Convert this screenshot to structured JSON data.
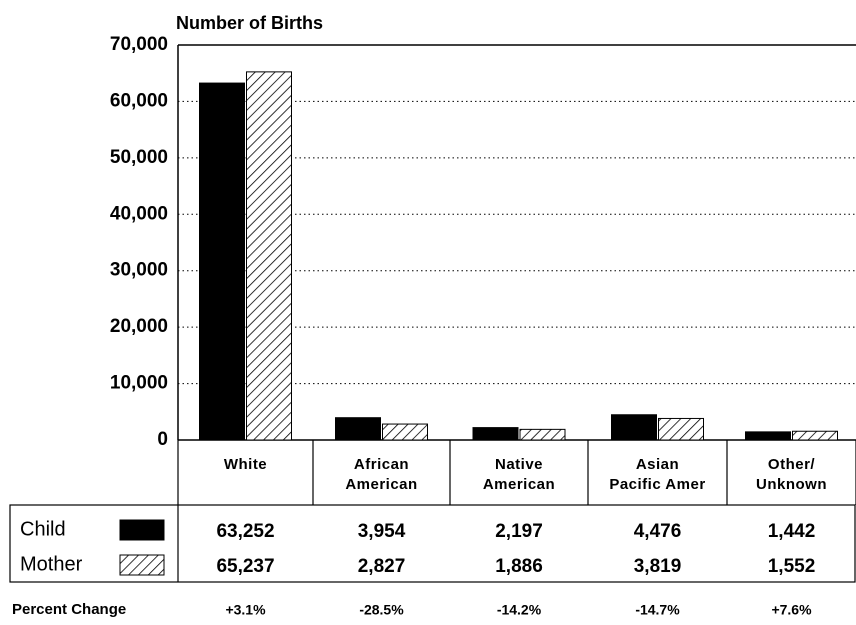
{
  "chart_data": {
    "type": "bar",
    "title": "Number of Births",
    "categories": [
      "White",
      "African\nAmerican",
      "Native\nAmerican",
      "Asian\nPacific Amer",
      "Other/\nUnknown"
    ],
    "series": [
      {
        "name": "Child",
        "color": "#000000",
        "values": [
          63252,
          3954,
          2197,
          4476,
          1442
        ],
        "value_labels": [
          "63,252",
          "3,954",
          "2,197",
          "4,476",
          "1,442"
        ]
      },
      {
        "name": "Mother",
        "color": "hatched",
        "values": [
          65237,
          2827,
          1886,
          3819,
          1552
        ],
        "value_labels": [
          "65,237",
          "2,827",
          "1,886",
          "3,819",
          "1,552"
        ]
      }
    ],
    "ylim": [
      0,
      70000
    ],
    "yticks": [
      0,
      {
        "value": 10000,
        "label": "10,000"
      },
      {
        "value": 20000,
        "label": "20,000"
      },
      {
        "value": 30000,
        "label": "30,000"
      },
      {
        "value": 40000,
        "label": "40,000"
      },
      {
        "value": 50000,
        "label": "50,000"
      },
      {
        "value": 60000,
        "label": "60,000"
      },
      {
        "value": 70000,
        "label": "70,000"
      }
    ],
    "grid": true,
    "percent_change": {
      "label": "Percent Change",
      "values": [
        "+3.1%",
        "-28.5%",
        "-14.2%",
        "-14.7%",
        "+7.6%"
      ]
    }
  }
}
